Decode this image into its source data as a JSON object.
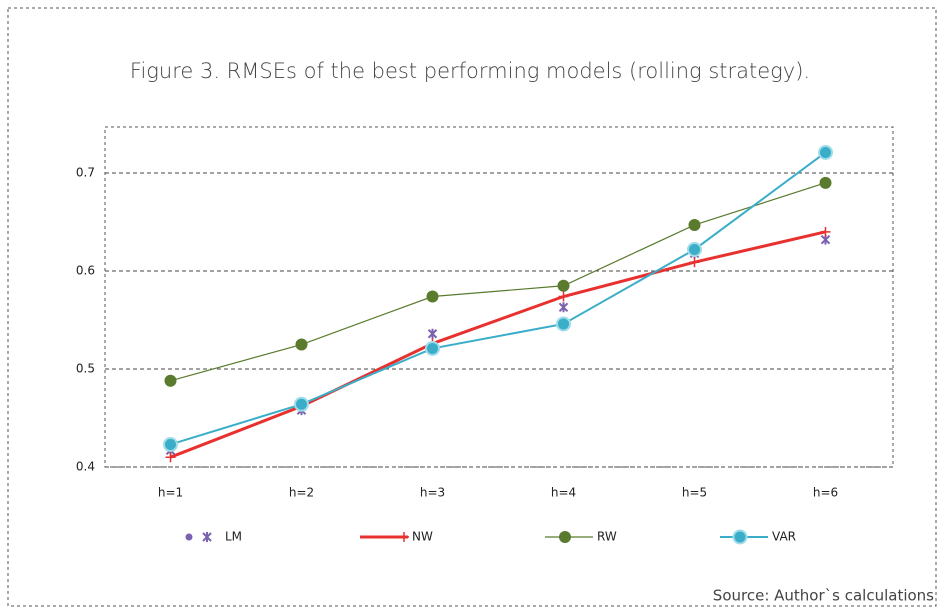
{
  "chart_data": {
    "type": "line",
    "title": "Figure 3. RMSEs of the best performing models (rolling strategy).",
    "source": "Source: Author`s calculations",
    "categories": [
      "h=1",
      "h=2",
      "h=3",
      "h=4",
      "h=5",
      "h=6"
    ],
    "series": [
      {
        "name": "LM",
        "color": "#7b62b0",
        "marker": "x",
        "line": false,
        "values": [
          0.417,
          0.458,
          0.536,
          0.563,
          0.618,
          0.632
        ]
      },
      {
        "name": "NW",
        "color": "#e8312f",
        "marker": "plus",
        "line": true,
        "line_width": 3,
        "values": [
          0.41,
          0.462,
          0.526,
          0.574,
          0.609,
          0.64
        ]
      },
      {
        "name": "RW",
        "color": "#5a7a2e",
        "marker": "dot",
        "line": true,
        "line_width": 1.2,
        "values": [
          0.488,
          0.525,
          0.574,
          0.585,
          0.647,
          0.69
        ]
      },
      {
        "name": "VAR",
        "color": "#3aaec8",
        "marker": "circle",
        "line": true,
        "line_width": 2,
        "values": [
          0.423,
          0.464,
          0.521,
          0.546,
          0.622,
          0.721
        ]
      }
    ],
    "ylim": [
      0.4,
      0.747
    ],
    "yticks": [
      0.4,
      0.5,
      0.6,
      0.7
    ],
    "grid": true,
    "legend": "bottom"
  }
}
